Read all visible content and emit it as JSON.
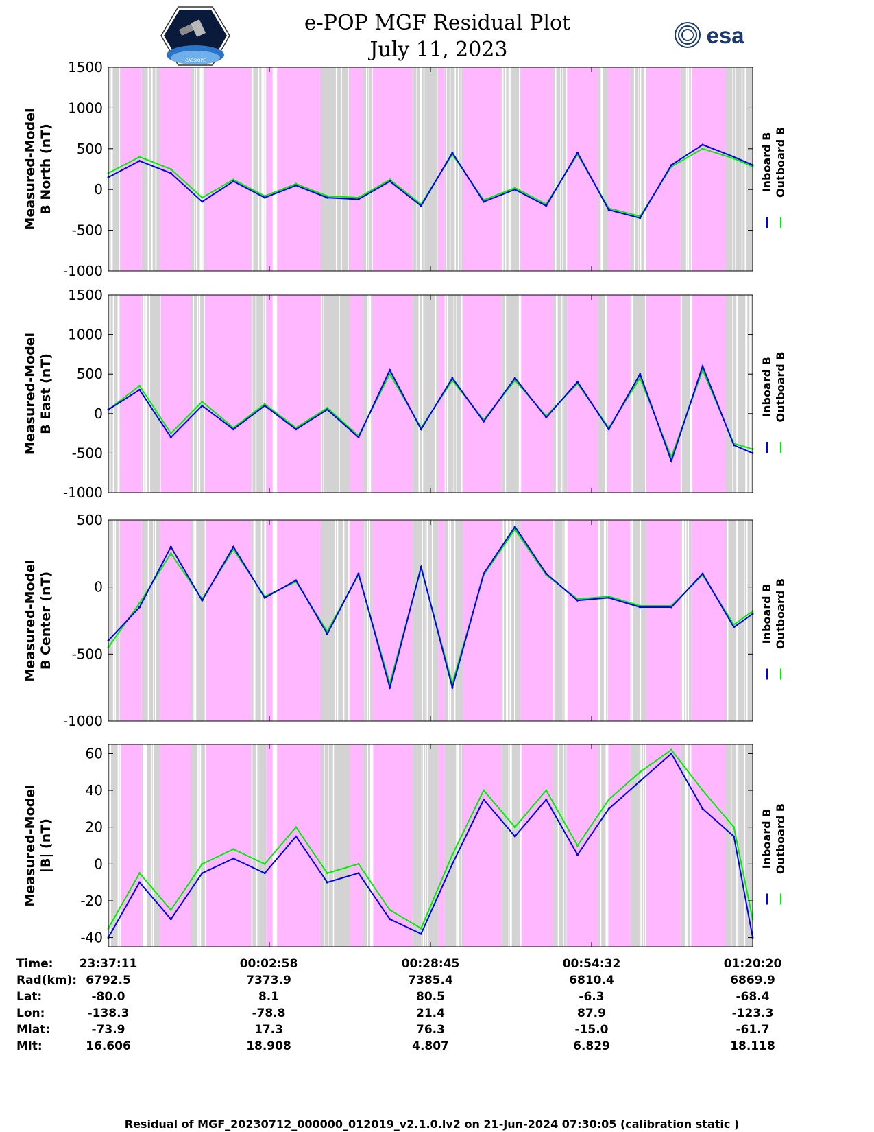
{
  "header": {
    "title_line1": "e-POP MGF Residual Plot",
    "title_line2": "July 11, 2023",
    "esa_logo_text": "esa",
    "mission_logo_text": "CASSIOPE"
  },
  "colors": {
    "inboard": "#0000ee",
    "outboard": "#00ee00",
    "eclipse": "#ffb8ff",
    "data_gap": "#d3d3d3"
  },
  "legend": {
    "inboard": "Inboard B",
    "outboard": "Outboard B"
  },
  "chart_data": [
    {
      "type": "line",
      "ylabel_line1": "Measured-Model",
      "ylabel_line2": "B North (nT)",
      "ylim": [
        -1000,
        1500
      ],
      "yticks": [
        "1500",
        "1000",
        "500",
        "0",
        "-500",
        "-1000"
      ],
      "x_minutes": [
        0,
        5,
        10,
        15,
        20,
        25,
        30,
        35,
        40,
        45,
        50,
        55,
        60,
        65,
        70,
        75,
        80,
        85,
        90,
        95,
        100,
        103
      ],
      "series": [
        {
          "name": "Inboard B",
          "values": [
            150,
            350,
            200,
            -150,
            100,
            -100,
            50,
            -100,
            -120,
            100,
            -200,
            450,
            -150,
            0,
            -200,
            450,
            -250,
            -350,
            300,
            550,
            400,
            300
          ]
        },
        {
          "name": "Outboard B",
          "values": [
            200,
            400,
            250,
            -100,
            120,
            -80,
            70,
            -80,
            -100,
            120,
            -180,
            430,
            -130,
            20,
            -180,
            430,
            -230,
            -330,
            280,
            500,
            380,
            280
          ]
        }
      ]
    },
    {
      "type": "line",
      "ylabel_line1": "Measured-Model",
      "ylabel_line2": "B East (nT)",
      "ylim": [
        -1000,
        1500
      ],
      "yticks": [
        "1500",
        "1000",
        "500",
        "0",
        "-500",
        "-1000"
      ],
      "x_minutes": [
        0,
        5,
        10,
        15,
        20,
        25,
        30,
        35,
        40,
        45,
        50,
        55,
        60,
        65,
        70,
        75,
        80,
        85,
        90,
        95,
        100,
        103
      ],
      "series": [
        {
          "name": "Inboard B",
          "values": [
            50,
            300,
            -300,
            100,
            -200,
            100,
            -200,
            50,
            -300,
            550,
            -200,
            450,
            -100,
            450,
            -50,
            400,
            -200,
            500,
            -600,
            600,
            -400,
            -500
          ]
        },
        {
          "name": "Outboard B",
          "values": [
            50,
            350,
            -250,
            150,
            -180,
            120,
            -180,
            70,
            -280,
            500,
            -180,
            420,
            -80,
            420,
            -30,
            380,
            -180,
            450,
            -550,
            550,
            -380,
            -450
          ]
        }
      ]
    },
    {
      "type": "line",
      "ylabel_line1": "Measured-Model",
      "ylabel_line2": "B Center (nT)",
      "ylim": [
        -1000,
        500
      ],
      "yticks": [
        "500",
        "0",
        "-500",
        "-1000"
      ],
      "x_minutes": [
        0,
        5,
        10,
        15,
        20,
        25,
        30,
        35,
        40,
        45,
        50,
        55,
        60,
        65,
        70,
        75,
        80,
        85,
        90,
        95,
        100,
        103
      ],
      "series": [
        {
          "name": "Inboard B",
          "values": [
            -400,
            -150,
            300,
            -100,
            300,
            -80,
            50,
            -350,
            100,
            -750,
            150,
            -750,
            100,
            450,
            100,
            -100,
            -80,
            -150,
            -150,
            100,
            -300,
            -200
          ]
        },
        {
          "name": "Outboard B",
          "values": [
            -450,
            -120,
            250,
            -90,
            280,
            -70,
            40,
            -330,
            90,
            -720,
            140,
            -720,
            90,
            430,
            90,
            -90,
            -70,
            -140,
            -140,
            90,
            -280,
            -180
          ]
        }
      ]
    },
    {
      "type": "line",
      "ylabel_line1": "Measured-Model",
      "ylabel_line2": "|B| (nT)",
      "ylim": [
        -45,
        65
      ],
      "yticks": [
        "60",
        "40",
        "20",
        "0",
        "-20",
        "-40"
      ],
      "x_minutes": [
        0,
        5,
        10,
        15,
        20,
        25,
        30,
        35,
        40,
        45,
        50,
        55,
        60,
        65,
        70,
        75,
        80,
        85,
        90,
        95,
        100,
        103
      ],
      "series": [
        {
          "name": "Inboard B",
          "values": [
            -40,
            -10,
            -30,
            -5,
            3,
            -5,
            15,
            -10,
            -5,
            -30,
            -38,
            0,
            35,
            15,
            35,
            5,
            30,
            45,
            60,
            30,
            15,
            -40
          ]
        },
        {
          "name": "Outboard B",
          "values": [
            -35,
            -5,
            -25,
            0,
            8,
            0,
            20,
            -5,
            0,
            -25,
            -35,
            5,
            40,
            20,
            40,
            10,
            35,
            50,
            62,
            40,
            20,
            -30
          ]
        }
      ]
    }
  ],
  "footer_info": {
    "row_labels": [
      "Time:",
      "Rad(km):",
      "Lat:",
      "Lon:",
      "Mlat:",
      "Mlt:"
    ],
    "columns": [
      [
        "23:37:11",
        "6792.5",
        "-80.0",
        "-138.3",
        "-73.9",
        "16.606"
      ],
      [
        "00:02:58",
        "7373.9",
        "8.1",
        "-78.8",
        "17.3",
        "18.908"
      ],
      [
        "00:28:45",
        "7385.4",
        "80.5",
        "21.4",
        "76.3",
        "4.807"
      ],
      [
        "00:54:32",
        "6810.4",
        "-6.3",
        "87.9",
        "-15.0",
        "6.829"
      ],
      [
        "01:20:20",
        "6869.9",
        "-68.4",
        "-123.3",
        "-61.7",
        "18.118"
      ]
    ]
  },
  "footer": {
    "text": "Residual of MGF_20230712_000000_012019_v2.1.0.lv2 on 21-Jun-2024 07:30:05 (calibration static )"
  }
}
